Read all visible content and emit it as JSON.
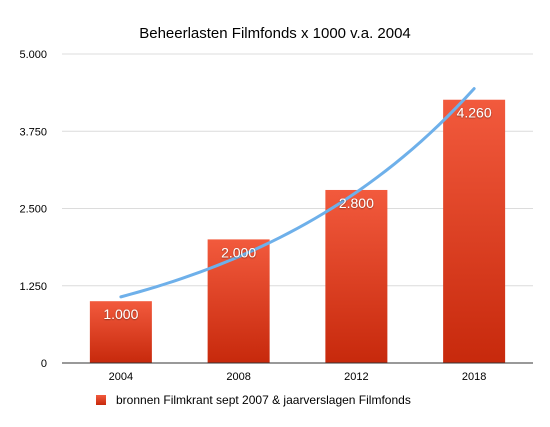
{
  "chart_data": {
    "type": "bar",
    "title": "Beheerlasten Filmfonds x 1000 v.a. 2004",
    "categories": [
      "2004",
      "2008",
      "2012",
      "2018"
    ],
    "series": [
      {
        "name": "bronnen Filmkrant sept 2007 & jaarverslagen Filmfonds",
        "values": [
          1000,
          2000,
          2800,
          4260
        ],
        "data_labels": [
          "1.000",
          "2.000",
          "2.800",
          "4.260"
        ]
      }
    ],
    "y_ticks": [
      0,
      1250,
      2500,
      3750,
      5000
    ],
    "y_tick_labels": [
      "0",
      "1.250",
      "2.500",
      "3.750",
      "5.000"
    ],
    "ylim": [
      0,
      5000
    ],
    "xlabel": "",
    "ylabel": "",
    "grid": true,
    "legend_position": "bottom",
    "trendline": {
      "type": "exponential",
      "start_value": 1070,
      "end_value": 4440
    },
    "colors": {
      "bar_top": "#f25a3d",
      "bar_bottom": "#c7290c",
      "trendline": "#6eb0ea",
      "grid": "#dcdcdc",
      "axis": "#333333",
      "text": "#000000",
      "label_text": "#ffffff"
    }
  }
}
